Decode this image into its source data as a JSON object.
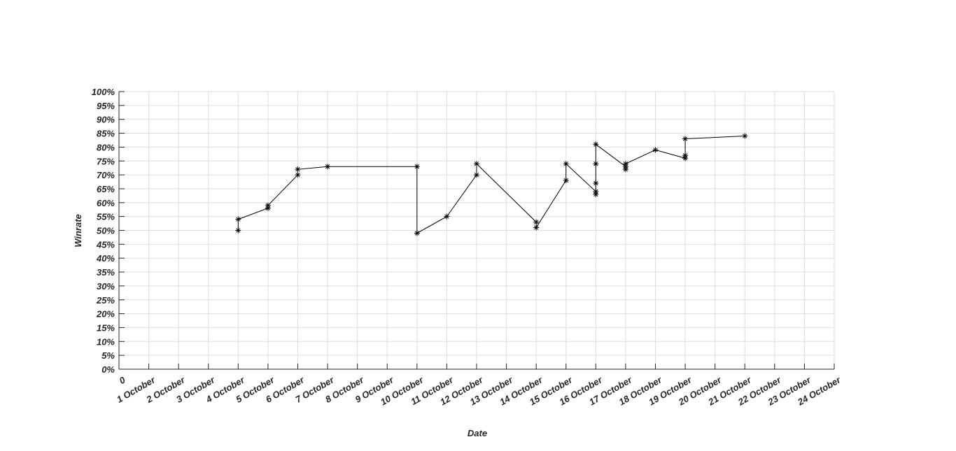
{
  "chart_data": {
    "type": "line",
    "xlabel": "Date",
    "ylabel": "Winrate",
    "x": [
      4,
      4,
      5,
      5,
      6,
      6,
      7,
      10,
      10,
      11,
      12,
      12,
      14,
      14,
      15,
      15,
      16,
      16,
      16,
      16,
      16,
      17,
      17,
      17,
      18,
      19,
      19,
      19,
      21
    ],
    "series": [
      {
        "color": "#000000",
        "values": [
          50,
          54,
          58,
          59,
          70,
          72,
          73,
          73,
          49,
          55,
          70,
          74,
          53,
          51,
          68,
          74,
          64,
          63,
          67,
          74,
          81,
          73,
          72,
          74,
          79,
          76,
          77,
          83,
          84
        ]
      }
    ],
    "xlim": [
      0,
      24
    ],
    "xticks": [
      0,
      {
        "value": 1,
        "label": "1 October"
      },
      {
        "value": 2,
        "label": "2 October"
      },
      {
        "value": 3,
        "label": "3 October"
      },
      {
        "value": 4,
        "label": "4 October"
      },
      {
        "value": 5,
        "label": "5 October"
      },
      {
        "value": 6,
        "label": "6 October"
      },
      {
        "value": 7,
        "label": "7 October"
      },
      {
        "value": 8,
        "label": "8 October"
      },
      {
        "value": 9,
        "label": "9 October"
      },
      {
        "value": 10,
        "label": "10 October"
      },
      {
        "value": 11,
        "label": "11 October"
      },
      {
        "value": 12,
        "label": "12 October"
      },
      {
        "value": 13,
        "label": "13 October"
      },
      {
        "value": 14,
        "label": "14 October"
      },
      {
        "value": 15,
        "label": "15 October"
      },
      {
        "value": 16,
        "label": "16 October"
      },
      {
        "value": 17,
        "label": "17 October"
      },
      {
        "value": 18,
        "label": "18 October"
      },
      {
        "value": 19,
        "label": "19 October"
      },
      {
        "value": 20,
        "label": "20 October"
      },
      {
        "value": 21,
        "label": "21 October"
      },
      {
        "value": 22,
        "label": "22 October"
      },
      {
        "value": 23,
        "label": "23 October"
      },
      {
        "value": 24,
        "label": "24 October"
      }
    ],
    "ylim": [
      0,
      100
    ],
    "yticks": [
      {
        "value": 0,
        "label": "0%"
      },
      {
        "value": 5,
        "label": "5%"
      },
      {
        "value": 10,
        "label": "10%"
      },
      {
        "value": 15,
        "label": "15%"
      },
      {
        "value": 20,
        "label": "20%"
      },
      {
        "value": 25,
        "label": "25%"
      },
      {
        "value": 30,
        "label": "30%"
      },
      {
        "value": 35,
        "label": "35%"
      },
      {
        "value": 40,
        "label": "40%"
      },
      {
        "value": 45,
        "label": "45%"
      },
      {
        "value": 50,
        "label": "50%"
      },
      {
        "value": 55,
        "label": "55%"
      },
      {
        "value": 60,
        "label": "60%"
      },
      {
        "value": 65,
        "label": "65%"
      },
      {
        "value": 70,
        "label": "70%"
      },
      {
        "value": 75,
        "label": "75%"
      },
      {
        "value": 80,
        "label": "80%"
      },
      {
        "value": 85,
        "label": "85%"
      },
      {
        "value": 90,
        "label": "90%"
      },
      {
        "value": 95,
        "label": "95%"
      },
      {
        "value": 100,
        "label": "100%"
      }
    ],
    "grid": true,
    "marker": "asterisk"
  }
}
